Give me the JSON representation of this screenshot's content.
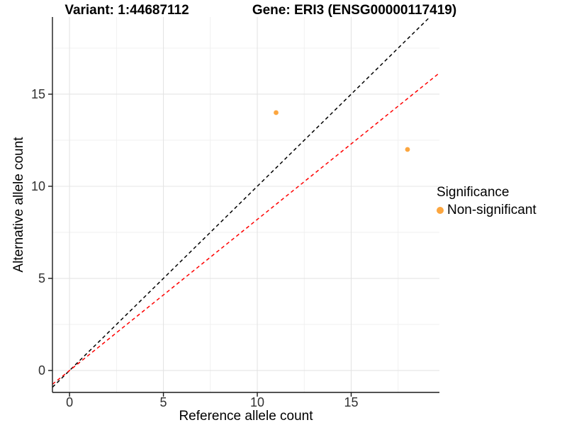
{
  "chart_data": {
    "type": "scatter",
    "title_left": "Variant: 1:44687112",
    "title_right": "Gene: ERI3 (ENSG00000117419)",
    "xlabel": "Reference allele count",
    "ylabel": "Alternative allele count",
    "xlim": [
      -0.91,
      19.7
    ],
    "ylim": [
      -1.19,
      19.19
    ],
    "x_ticks": [
      0,
      5,
      10,
      15
    ],
    "y_ticks": [
      0,
      5,
      10,
      15
    ],
    "x_minor_ticks": [
      2.5,
      7.5,
      12.5,
      17.5
    ],
    "y_minor_ticks": [
      2.5,
      7.5,
      12.5,
      17.5
    ],
    "grid": true,
    "legend_position": "right",
    "series": [
      {
        "name": "Non-significant",
        "color": "#FCA63F",
        "points": [
          {
            "x": 11,
            "y": 14
          },
          {
            "x": 18,
            "y": 12
          }
        ]
      }
    ],
    "reference_lines": [
      {
        "name": "identity-line",
        "slope": 1.0,
        "intercept": 0,
        "color": "#000000",
        "style": "dashed"
      },
      {
        "name": "expected-ratio-line",
        "slope": 0.82,
        "intercept": 0,
        "color": "#FF0000",
        "style": "dashed"
      }
    ],
    "legend": {
      "title": "Significance",
      "entries": [
        {
          "label": "Non-significant",
          "color": "#FCA63F"
        }
      ]
    },
    "colors": {
      "major_grid": "#E4E4E4",
      "minor_grid": "#EFEFEF",
      "axis_line": "#1a1a1a",
      "tick_label": "#303030",
      "point": "#FCA63F"
    }
  }
}
